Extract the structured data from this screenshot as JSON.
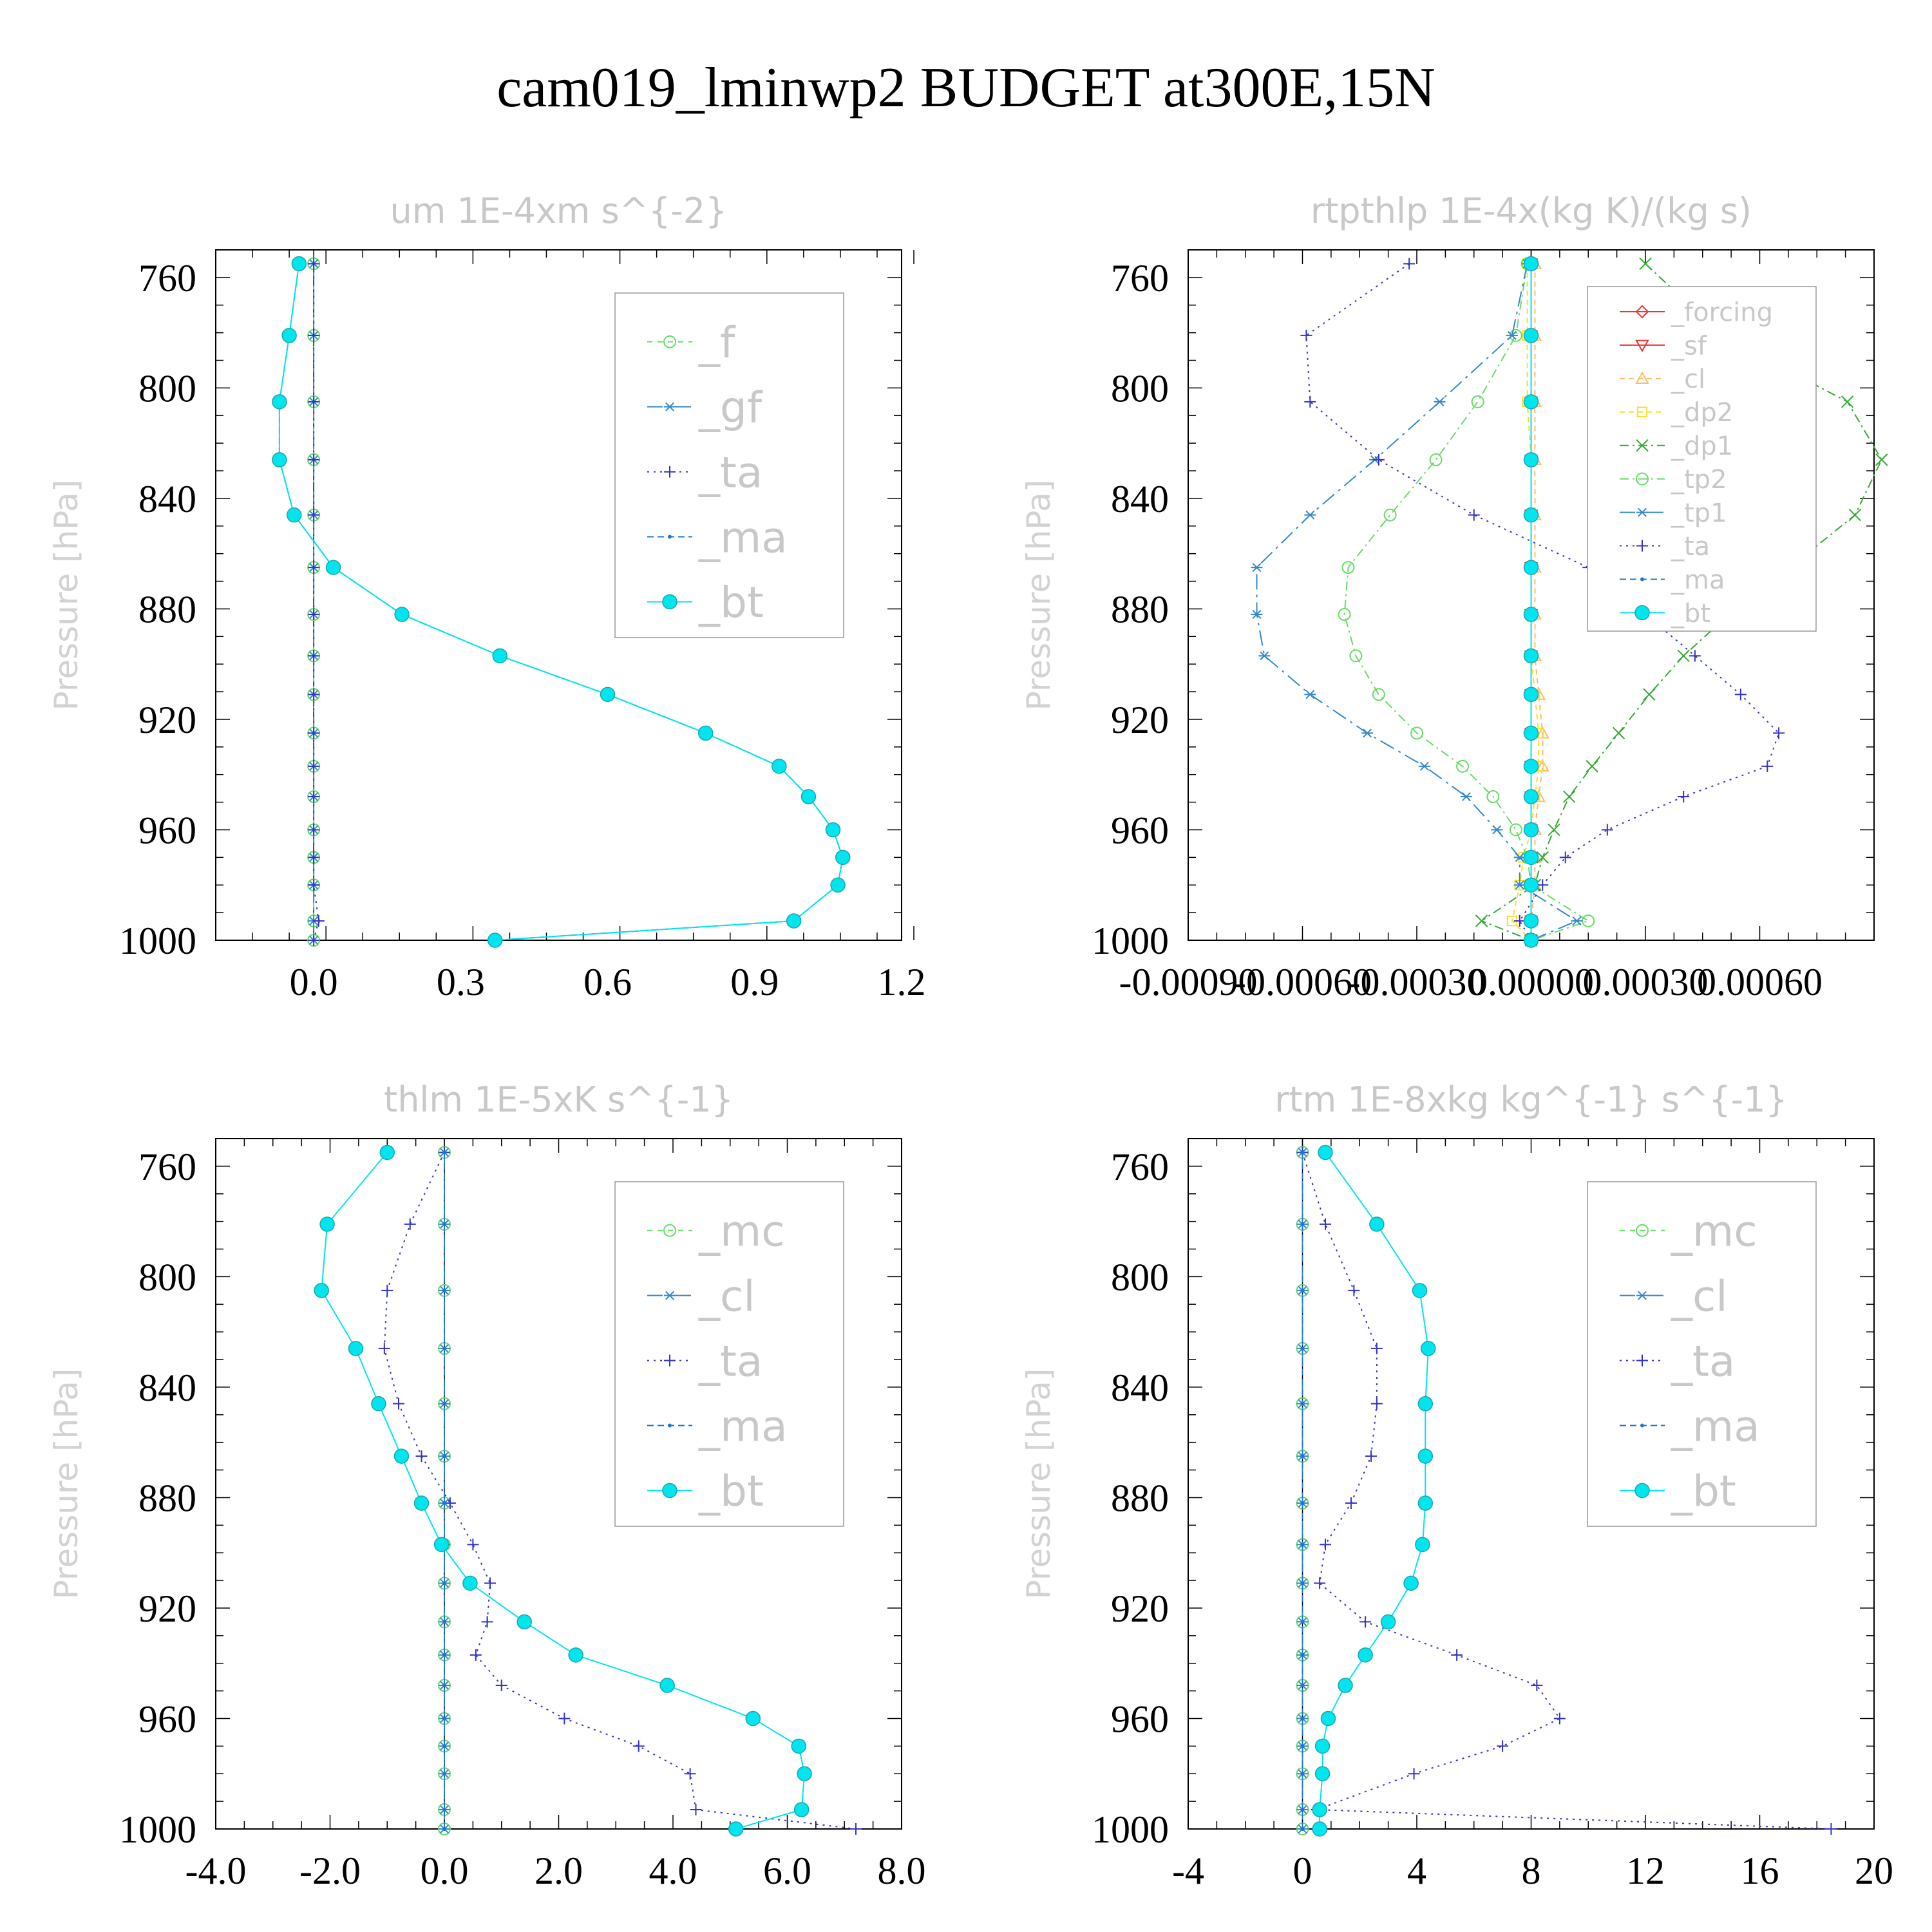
{
  "title": "cam019_lminwp2  BUDGET at300E,15N",
  "chart_data": [
    {
      "type": "line",
      "title": "um  1E-4xm s^{-2}",
      "ylabel": "Pressure [hPa]",
      "ylim": [
        1000,
        750
      ],
      "yticks": [
        760,
        800,
        840,
        880,
        920,
        960,
        1000
      ],
      "xlim": [
        -0.2,
        1.2
      ],
      "xticks": [
        0.0,
        0.3,
        0.6,
        0.9,
        1.2
      ],
      "xticklabels": [
        "0.0",
        "0.3",
        "0.6",
        "0.9",
        "1.2"
      ],
      "legend_position": "top-right",
      "legend_font": 66,
      "levels": [
        755,
        781,
        805,
        826,
        846,
        865,
        882,
        897,
        911,
        925,
        937,
        948,
        960,
        970,
        980,
        993,
        1000
      ],
      "series": [
        {
          "name": "_f",
          "color": "#66dd66",
          "dash": "8,8",
          "marker": "circle",
          "values": [
            0,
            0,
            0,
            0,
            0,
            0,
            0,
            0,
            0,
            0,
            0,
            0,
            0,
            0,
            0,
            0,
            0
          ]
        },
        {
          "name": "_gf",
          "color": "#3388cc",
          "dash": "24,8,4,8",
          "marker": "star",
          "values": [
            0,
            0,
            0,
            0,
            0,
            0,
            0,
            0,
            0,
            0,
            0,
            0,
            0,
            0,
            0,
            0,
            0
          ]
        },
        {
          "name": "_ta",
          "color": "#3333cc",
          "dash": "3,7",
          "marker": "plus",
          "values": [
            0,
            0,
            0,
            0,
            0,
            0,
            0,
            0,
            0,
            0,
            0,
            0,
            0,
            0,
            0,
            0.01,
            0
          ]
        },
        {
          "name": "_ma",
          "color": "#2277cc",
          "dash": "10,6",
          "marker": "dot",
          "values": [
            -0.03,
            -0.05,
            -0.07,
            -0.07,
            -0.04,
            0.04,
            0.18,
            0.38,
            0.6,
            0.8,
            0.95,
            1.01,
            1.06,
            1.08,
            1.07,
            0.98,
            0.37
          ]
        },
        {
          "name": "_bt",
          "color": "#00e5ee",
          "dash": "",
          "marker": "bigdot",
          "values": [
            -0.03,
            -0.05,
            -0.07,
            -0.07,
            -0.04,
            0.04,
            0.18,
            0.38,
            0.6,
            0.8,
            0.95,
            1.01,
            1.06,
            1.08,
            1.07,
            0.98,
            0.37
          ]
        }
      ]
    },
    {
      "type": "line",
      "title": "rtpthlp  1E-4x(kg K)/(kg s)",
      "ylabel": "Pressure [hPa]",
      "ylim": [
        1000,
        750
      ],
      "yticks": [
        760,
        800,
        840,
        880,
        920,
        960,
        1000
      ],
      "xlim": [
        -0.0009,
        0.0009
      ],
      "xticks": [
        -0.0009,
        -0.0006,
        -0.0003,
        0.0,
        0.0003,
        0.0006
      ],
      "xticklabels": [
        "-0.00090",
        "-0.00060",
        "-0.00030",
        "0.00000",
        "0.00030",
        "0.00060"
      ],
      "legend_position": "top-right",
      "legend_font": 40,
      "levels": [
        755,
        781,
        805,
        826,
        846,
        865,
        882,
        897,
        911,
        925,
        937,
        948,
        960,
        970,
        980,
        993,
        1000
      ],
      "series": [
        {
          "name": "_forcing",
          "color": "#ee3333",
          "dash": "",
          "marker": "diamond",
          "values": [
            0,
            0,
            0,
            0,
            0,
            0,
            0,
            0,
            0,
            0,
            0,
            0,
            0,
            0,
            0,
            0,
            0
          ]
        },
        {
          "name": "_sf",
          "color": "#ee3333",
          "dash": "",
          "marker": "tridown",
          "values": [
            0,
            0,
            0,
            0,
            0,
            0,
            0,
            0,
            0,
            0,
            0,
            0,
            0,
            0,
            0,
            0,
            0
          ]
        },
        {
          "name": "_cl",
          "color": "#ffbb66",
          "dash": "8,6",
          "marker": "triup",
          "values": [
            1e-05,
            1e-05,
            1e-05,
            1e-05,
            1e-05,
            1e-05,
            1e-05,
            1e-05,
            2e-05,
            3e-05,
            3e-05,
            2e-05,
            1e-05,
            1e-05,
            1e-05,
            0,
            0
          ]
        },
        {
          "name": "_dp2",
          "color": "#ffdd22",
          "dash": "8,6",
          "marker": "square",
          "values": [
            -1e-05,
            -1e-05,
            -1e-05,
            0,
            0,
            0,
            0,
            0,
            1e-05,
            2e-05,
            2e-05,
            1e-05,
            0,
            -2e-05,
            -3e-05,
            -5e-05,
            0
          ]
        },
        {
          "name": "_dp1",
          "color": "#33aa33",
          "dash": "14,6,3,6",
          "marker": "cross",
          "values": [
            0.0003,
            0.0005,
            0.00083,
            0.00092,
            0.00085,
            0.00068,
            0.00052,
            0.0004,
            0.00031,
            0.00023,
            0.00016,
            0.0001,
            6e-05,
            3e-05,
            1e-05,
            -0.00013,
            0
          ]
        },
        {
          "name": "_tp2",
          "color": "#66dd66",
          "dash": "14,6,3,6",
          "marker": "circle",
          "values": [
            -1e-05,
            -4e-05,
            -0.00014,
            -0.00025,
            -0.00037,
            -0.00048,
            -0.00049,
            -0.00046,
            -0.0004,
            -0.0003,
            -0.00018,
            -0.0001,
            -4e-05,
            -1e-05,
            0,
            0.00015,
            0
          ]
        },
        {
          "name": "_tp1",
          "color": "#3388cc",
          "dash": "24,8,4,8",
          "marker": "star",
          "values": [
            -1e-05,
            -5e-05,
            -0.00024,
            -0.00041,
            -0.00058,
            -0.00072,
            -0.00072,
            -0.0007,
            -0.00058,
            -0.00043,
            -0.00028,
            -0.00017,
            -9e-05,
            -3e-05,
            -3e-05,
            0.00012,
            0
          ]
        },
        {
          "name": "_ta",
          "color": "#3333cc",
          "dash": "3,7",
          "marker": "plus",
          "values": [
            -0.00032,
            -0.00059,
            -0.00058,
            -0.0004,
            -0.00015,
            0.00015,
            0.0003,
            0.00043,
            0.00055,
            0.00065,
            0.00062,
            0.0004,
            0.0002,
            9e-05,
            3e-05,
            -3e-05,
            0
          ]
        },
        {
          "name": "_ma",
          "color": "#2277cc",
          "dash": "10,6",
          "marker": "dot",
          "values": [
            0,
            0,
            0,
            0,
            0,
            0,
            0,
            0,
            0,
            0,
            0,
            0,
            0,
            0,
            0,
            0,
            0
          ]
        },
        {
          "name": "_bt",
          "color": "#00e5ee",
          "dash": "",
          "marker": "bigdot",
          "values": [
            0,
            0,
            0,
            0,
            0,
            0,
            0,
            0,
            0,
            0,
            0,
            0,
            0,
            0,
            0,
            0,
            0
          ]
        }
      ]
    },
    {
      "type": "line",
      "title": "thlm  1E-5xK s^{-1}",
      "ylabel": "Pressure [hPa]",
      "ylim": [
        1000,
        750
      ],
      "yticks": [
        760,
        800,
        840,
        880,
        920,
        960,
        1000
      ],
      "xlim": [
        -4.0,
        8.0
      ],
      "xticks": [
        -4.0,
        -2.0,
        0.0,
        2.0,
        4.0,
        6.0,
        8.0
      ],
      "xticklabels": [
        "-4.0",
        "-2.0",
        "0.0",
        "2.0",
        "4.0",
        "6.0",
        "8.0"
      ],
      "legend_position": "top-right",
      "legend_font": 66,
      "levels": [
        755,
        781,
        805,
        826,
        846,
        865,
        882,
        897,
        911,
        925,
        937,
        948,
        960,
        970,
        980,
        993,
        1000
      ],
      "series": [
        {
          "name": "_mc",
          "color": "#66dd66",
          "dash": "8,8",
          "marker": "circle",
          "values": [
            0,
            0,
            0,
            0,
            0,
            0,
            0,
            0,
            0,
            0,
            0,
            0,
            0,
            0,
            0,
            0,
            0
          ]
        },
        {
          "name": "_cl",
          "color": "#3388cc",
          "dash": "24,8,4,8",
          "marker": "star",
          "values": [
            0,
            0,
            0,
            0,
            0,
            0,
            0,
            0,
            0,
            0,
            0,
            0,
            0,
            0,
            0,
            0,
            0
          ]
        },
        {
          "name": "_ta",
          "color": "#3333cc",
          "dash": "3,7",
          "marker": "plus",
          "values": [
            0,
            -0.6,
            -1.0,
            -1.05,
            -0.8,
            -0.4,
            0.1,
            0.5,
            0.8,
            0.75,
            0.55,
            1.0,
            2.1,
            3.4,
            4.3,
            4.4,
            7.2
          ]
        },
        {
          "name": "_ma",
          "color": "#2277cc",
          "dash": "10,6",
          "marker": "dot",
          "values": [
            0,
            0,
            0,
            0,
            0,
            0,
            0,
            0,
            0,
            0,
            0,
            0,
            0,
            0,
            0,
            0,
            0
          ]
        },
        {
          "name": "_bt",
          "color": "#00e5ee",
          "dash": "",
          "marker": "bigdot",
          "values": [
            -1.0,
            -2.05,
            -2.15,
            -1.55,
            -1.15,
            -0.75,
            -0.4,
            -0.05,
            0.45,
            1.4,
            2.3,
            3.9,
            5.4,
            6.2,
            6.3,
            6.25,
            5.1
          ]
        }
      ]
    },
    {
      "type": "line",
      "title": "rtm  1E-8xkg kg^{-1} s^{-1}",
      "ylabel": "Pressure [hPa]",
      "ylim": [
        1000,
        750
      ],
      "yticks": [
        760,
        800,
        840,
        880,
        920,
        960,
        1000
      ],
      "xlim": [
        -4,
        20
      ],
      "xticks": [
        -4,
        0,
        4,
        8,
        12,
        16,
        20
      ],
      "xticklabels": [
        "-4",
        "0",
        "4",
        "8",
        "12",
        "16",
        "20"
      ],
      "legend_position": "top-right",
      "legend_font": 66,
      "levels": [
        755,
        781,
        805,
        826,
        846,
        865,
        882,
        897,
        911,
        925,
        937,
        948,
        960,
        970,
        980,
        993,
        1000
      ],
      "series": [
        {
          "name": "_mc",
          "color": "#66dd66",
          "dash": "8,8",
          "marker": "circle",
          "values": [
            0,
            0,
            0,
            0,
            0,
            0,
            0,
            0,
            0,
            0,
            0,
            0,
            0,
            0,
            0,
            0,
            0
          ]
        },
        {
          "name": "_cl",
          "color": "#3388cc",
          "dash": "24,8,4,8",
          "marker": "star",
          "values": [
            0,
            0,
            0,
            0,
            0,
            0,
            0,
            0,
            0,
            0,
            0,
            0,
            0,
            0,
            0,
            0,
            0
          ]
        },
        {
          "name": "_ta",
          "color": "#3333cc",
          "dash": "3,7",
          "marker": "plus",
          "values": [
            0,
            0.8,
            1.8,
            2.6,
            2.6,
            2.4,
            1.7,
            0.8,
            0.6,
            2.2,
            5.4,
            8.2,
            9.0,
            7.0,
            3.9,
            0.5,
            18.5
          ]
        },
        {
          "name": "_ma",
          "color": "#2277cc",
          "dash": "10,6",
          "marker": "dot",
          "values": [
            0,
            0,
            0,
            0,
            0,
            0,
            0,
            0,
            0,
            0,
            0,
            0,
            0,
            0,
            0,
            0,
            0
          ]
        },
        {
          "name": "_bt",
          "color": "#00e5ee",
          "dash": "",
          "marker": "bigdot",
          "values": [
            0.8,
            2.6,
            4.1,
            4.4,
            4.3,
            4.3,
            4.3,
            4.2,
            3.8,
            3.0,
            2.2,
            1.5,
            0.9,
            0.7,
            0.7,
            0.6,
            0.6
          ]
        }
      ]
    }
  ]
}
